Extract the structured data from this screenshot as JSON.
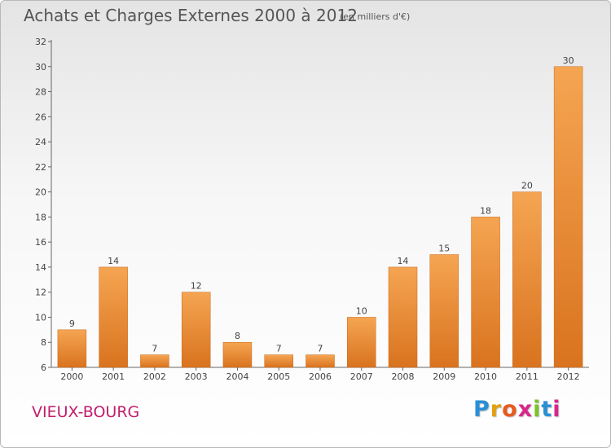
{
  "header": {
    "title": "Achats et Charges Externes 2000 à 2012",
    "subtitle": "(en milliers d'€)"
  },
  "commune": "VIEUX-BOURG",
  "logo": {
    "letters": [
      "P",
      "r",
      "o",
      "x",
      "i",
      "t",
      "i"
    ],
    "colors": [
      "#2a8fd4",
      "#e2a012",
      "#e85a1c",
      "#d8268a",
      "#7dc22b",
      "#2a8fd4",
      "#d8268a"
    ]
  },
  "colors": {
    "bar_light": "#f5a552",
    "bar_dark": "#d9731f",
    "commune_text": "#c21d6b"
  },
  "chart_data": {
    "type": "bar",
    "title": "Achats et Charges Externes 2000 à 2012",
    "subtitle": "(en milliers d'€)",
    "categories": [
      "2000",
      "2001",
      "2002",
      "2003",
      "2004",
      "2005",
      "2006",
      "2007",
      "2008",
      "2009",
      "2010",
      "2011",
      "2012"
    ],
    "values": [
      9,
      14,
      7,
      12,
      8,
      7,
      7,
      10,
      14,
      15,
      18,
      20,
      30
    ],
    "ylim": [
      6,
      32
    ],
    "yticks": [
      6,
      8,
      10,
      12,
      14,
      16,
      18,
      20,
      22,
      24,
      26,
      28,
      30,
      32
    ],
    "xlabel": "",
    "ylabel": "",
    "grid": false,
    "data_labels": true
  }
}
